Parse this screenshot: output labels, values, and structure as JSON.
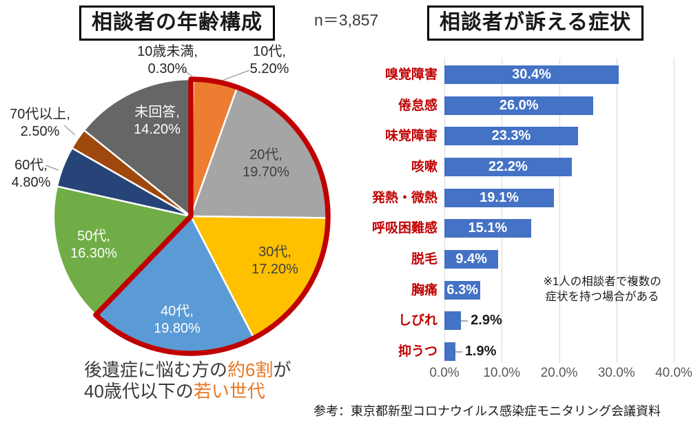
{
  "titles": {
    "pie": "相談者の年齢構成",
    "bar": "相談者が訴える症状",
    "sample_size": "n＝3,857"
  },
  "chart_data": [
    {
      "type": "pie",
      "title": "相談者の年齢構成",
      "start_angle_deg": 0,
      "direction": "clockwise",
      "segments": [
        {
          "label": "10歳未満",
          "value": 0.3,
          "display": "0.30%",
          "color": "#4472C4",
          "label_placement": "outside",
          "label_color": "#262626"
        },
        {
          "label": "10代",
          "value": 5.2,
          "display": "5.20%",
          "color": "#ED7D31",
          "label_placement": "outside",
          "label_color": "#262626"
        },
        {
          "label": "20代",
          "value": 19.7,
          "display": "19.70%",
          "color": "#A5A5A5",
          "label_placement": "inside",
          "label_color": "#3f3f3f"
        },
        {
          "label": "30代",
          "value": 17.2,
          "display": "17.20%",
          "color": "#FFC000",
          "label_placement": "inside",
          "label_color": "#3f3f3f"
        },
        {
          "label": "40代",
          "value": 19.8,
          "display": "19.80%",
          "color": "#5B9BD5",
          "label_placement": "inside",
          "label_color": "#ffffff"
        },
        {
          "label": "50代",
          "value": 16.3,
          "display": "16.30%",
          "color": "#70AD47",
          "label_placement": "inside",
          "label_color": "#ffffff"
        },
        {
          "label": "60代",
          "value": 4.8,
          "display": "4.80%",
          "color": "#264478",
          "label_placement": "outside",
          "label_color": "#262626"
        },
        {
          "label": "70代以上",
          "value": 2.5,
          "display": "2.50%",
          "color": "#9E480E",
          "label_placement": "outside",
          "label_color": "#262626"
        },
        {
          "label": "未回答",
          "value": 14.2,
          "display": "14.20%",
          "color": "#666666",
          "label_placement": "inside",
          "label_color": "#ffffff"
        }
      ],
      "highlight": {
        "color": "#C00000",
        "segments_covered": [
          "10歳未満",
          "10代",
          "20代",
          "30代",
          "40代"
        ],
        "coverage_value_percent": 62.2
      }
    },
    {
      "type": "bar",
      "title": "相談者が訴える症状",
      "orientation": "horizontal",
      "categories": [
        "嗅覚障害",
        "倦怠感",
        "味覚障害",
        "咳嗽",
        "発熱・微熱",
        "呼吸困難感",
        "脱毛",
        "胸痛",
        "しびれ",
        "抑うつ"
      ],
      "values": [
        30.4,
        26.0,
        23.3,
        22.2,
        19.1,
        15.1,
        9.4,
        6.3,
        2.9,
        1.9
      ],
      "value_labels": [
        "30.4%",
        "26.0%",
        "23.3%",
        "22.2%",
        "19.1%",
        "15.1%",
        "9.4%",
        "6.3%",
        "2.9%",
        "1.9%"
      ],
      "xlim": [
        0,
        40
      ],
      "x_ticks": [
        "0.0%",
        "10.0%",
        "20.0%",
        "30.0%",
        "40.0%"
      ],
      "grid": "vertical",
      "legend": "none",
      "bar_color": "#4472C4",
      "category_label_color": "#C00000",
      "note_lines": [
        "※1人の相談者で複数の",
        "症状を持つ場合がある"
      ]
    }
  ],
  "annotation": {
    "accent_color": "#E87722",
    "text_color": "#3a3a3a",
    "line1_parts": [
      {
        "text": "後遺症に悩む方の",
        "accent": false
      },
      {
        "text": "約6割",
        "accent": true
      },
      {
        "text": "が",
        "accent": false
      }
    ],
    "line2_parts": [
      {
        "text": "40歳代以下の",
        "accent": false
      },
      {
        "text": "若い世代",
        "accent": true
      }
    ]
  },
  "footer": {
    "source": "参考：東京都新型コロナウイルス感染症モニタリング会議資料"
  }
}
